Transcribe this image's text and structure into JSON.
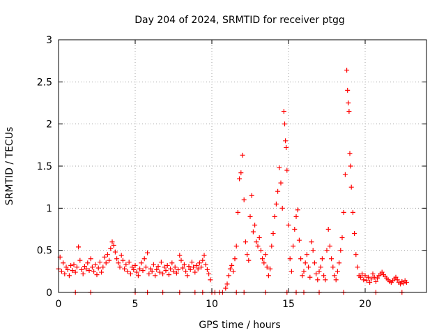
{
  "chart_data": {
    "type": "scatter",
    "title": "Day 204 of 2024, SRMTID for receiver ptgg",
    "xlabel": "GPS time / hours",
    "ylabel": "SRMTID / TECUs",
    "xlim": [
      0,
      24
    ],
    "ylim": [
      0,
      3
    ],
    "xticks": [
      "0",
      "5",
      "10",
      "15",
      "20"
    ],
    "xtick_values": [
      0,
      5,
      10,
      15,
      20
    ],
    "yticks": [
      "0",
      "0.5",
      "1",
      "1.5",
      "2",
      "2.5",
      "3"
    ],
    "ytick_values": [
      0,
      0.5,
      1,
      1.5,
      2,
      2.5,
      3
    ],
    "grid": true,
    "marker": "+",
    "color": "#ff0000",
    "series": [
      {
        "name": "SRMTID",
        "points": [
          [
            0.0,
            0.28
          ],
          [
            0.1,
            0.42
          ],
          [
            0.2,
            0.25
          ],
          [
            0.3,
            0.35
          ],
          [
            0.4,
            0.22
          ],
          [
            0.5,
            0.3
          ],
          [
            0.6,
            0.27
          ],
          [
            0.7,
            0.2
          ],
          [
            0.8,
            0.32
          ],
          [
            0.9,
            0.26
          ],
          [
            1.0,
            0.33
          ],
          [
            1.1,
            0.24
          ],
          [
            1.2,
            0.3
          ],
          [
            1.3,
            0.54
          ],
          [
            1.4,
            0.38
          ],
          [
            1.5,
            0.27
          ],
          [
            1.6,
            0.22
          ],
          [
            1.7,
            0.31
          ],
          [
            1.8,
            0.28
          ],
          [
            1.9,
            0.35
          ],
          [
            2.0,
            0.26
          ],
          [
            2.1,
            0.4
          ],
          [
            2.2,
            0.3
          ],
          [
            2.3,
            0.25
          ],
          [
            2.4,
            0.33
          ],
          [
            2.5,
            0.21
          ],
          [
            2.6,
            0.29
          ],
          [
            2.7,
            0.36
          ],
          [
            2.8,
            0.24
          ],
          [
            2.9,
            0.3
          ],
          [
            3.0,
            0.42
          ],
          [
            3.1,
            0.35
          ],
          [
            3.2,
            0.45
          ],
          [
            3.3,
            0.38
          ],
          [
            3.4,
            0.52
          ],
          [
            3.5,
            0.6
          ],
          [
            3.6,
            0.56
          ],
          [
            3.7,
            0.48
          ],
          [
            3.8,
            0.4
          ],
          [
            3.9,
            0.35
          ],
          [
            4.0,
            0.3
          ],
          [
            4.1,
            0.44
          ],
          [
            4.2,
            0.38
          ],
          [
            4.3,
            0.28
          ],
          [
            4.4,
            0.33
          ],
          [
            4.5,
            0.25
          ],
          [
            4.6,
            0.36
          ],
          [
            4.7,
            0.22
          ],
          [
            4.8,
            0.3
          ],
          [
            4.9,
            0.27
          ],
          [
            5.0,
            0.32
          ],
          [
            5.1,
            0.24
          ],
          [
            5.2,
            0.2
          ],
          [
            5.3,
            0.28
          ],
          [
            5.4,
            0.35
          ],
          [
            5.5,
            0.26
          ],
          [
            5.6,
            0.4
          ],
          [
            5.7,
            0.3
          ],
          [
            5.8,
            0.47
          ],
          [
            5.9,
            0.22
          ],
          [
            6.0,
            0.28
          ],
          [
            6.1,
            0.25
          ],
          [
            6.2,
            0.33
          ],
          [
            6.3,
            0.2
          ],
          [
            6.4,
            0.27
          ],
          [
            6.5,
            0.31
          ],
          [
            6.6,
            0.24
          ],
          [
            6.7,
            0.36
          ],
          [
            6.8,
            0.22
          ],
          [
            6.9,
            0.3
          ],
          [
            7.0,
            0.26
          ],
          [
            7.1,
            0.32
          ],
          [
            7.2,
            0.21
          ],
          [
            7.3,
            0.28
          ],
          [
            7.4,
            0.35
          ],
          [
            7.5,
            0.25
          ],
          [
            7.6,
            0.3
          ],
          [
            7.7,
            0.23
          ],
          [
            7.8,
            0.27
          ],
          [
            7.9,
            0.44
          ],
          [
            8.0,
            0.38
          ],
          [
            8.1,
            0.29
          ],
          [
            8.2,
            0.33
          ],
          [
            8.3,
            0.25
          ],
          [
            8.4,
            0.2
          ],
          [
            8.5,
            0.31
          ],
          [
            8.6,
            0.27
          ],
          [
            8.7,
            0.36
          ],
          [
            8.8,
            0.3
          ],
          [
            8.9,
            0.24
          ],
          [
            9.0,
            0.32
          ],
          [
            9.1,
            0.28
          ],
          [
            9.2,
            0.35
          ],
          [
            9.3,
            0.3
          ],
          [
            9.4,
            0.38
          ],
          [
            9.5,
            0.44
          ],
          [
            9.6,
            0.33
          ],
          [
            9.7,
            0.27
          ],
          [
            9.8,
            0.22
          ],
          [
            9.9,
            0.15
          ],
          [
            10.0,
            0.0
          ],
          [
            10.2,
            0.0
          ],
          [
            10.5,
            0.0
          ],
          [
            10.7,
            0.0
          ],
          [
            10.9,
            0.05
          ],
          [
            11.0,
            0.1
          ],
          [
            11.1,
            0.2
          ],
          [
            11.2,
            0.28
          ],
          [
            11.3,
            0.32
          ],
          [
            11.4,
            0.25
          ],
          [
            11.5,
            0.4
          ],
          [
            11.6,
            0.55
          ],
          [
            11.7,
            0.95
          ],
          [
            11.8,
            1.35
          ],
          [
            11.9,
            1.42
          ],
          [
            12.0,
            1.63
          ],
          [
            12.1,
            1.1
          ],
          [
            12.2,
            0.6
          ],
          [
            12.3,
            0.45
          ],
          [
            12.4,
            0.38
          ],
          [
            12.5,
            0.9
          ],
          [
            12.6,
            1.15
          ],
          [
            12.7,
            0.72
          ],
          [
            12.8,
            0.8
          ],
          [
            12.9,
            0.6
          ],
          [
            13.0,
            0.55
          ],
          [
            13.1,
            0.65
          ],
          [
            13.2,
            0.5
          ],
          [
            13.3,
            0.4
          ],
          [
            13.4,
            0.35
          ],
          [
            13.5,
            0.45
          ],
          [
            13.6,
            0.3
          ],
          [
            13.7,
            0.2
          ],
          [
            13.8,
            0.28
          ],
          [
            13.9,
            0.55
          ],
          [
            14.0,
            0.7
          ],
          [
            14.1,
            0.9
          ],
          [
            14.2,
            1.05
          ],
          [
            14.3,
            1.2
          ],
          [
            14.4,
            1.48
          ],
          [
            14.5,
            1.3
          ],
          [
            14.6,
            1.0
          ],
          [
            14.7,
            2.15
          ],
          [
            14.75,
            2.0
          ],
          [
            14.8,
            1.8
          ],
          [
            14.85,
            1.72
          ],
          [
            14.9,
            1.45
          ],
          [
            15.0,
            0.8
          ],
          [
            15.1,
            0.4
          ],
          [
            15.2,
            0.25
          ],
          [
            15.3,
            0.55
          ],
          [
            15.4,
            0.75
          ],
          [
            15.5,
            0.9
          ],
          [
            15.6,
            0.98
          ],
          [
            15.7,
            0.62
          ],
          [
            15.8,
            0.4
          ],
          [
            15.9,
            0.2
          ],
          [
            16.0,
            0.25
          ],
          [
            16.1,
            0.35
          ],
          [
            16.2,
            0.45
          ],
          [
            16.3,
            0.3
          ],
          [
            16.4,
            0.18
          ],
          [
            16.5,
            0.6
          ],
          [
            16.6,
            0.5
          ],
          [
            16.7,
            0.35
          ],
          [
            16.8,
            0.22
          ],
          [
            16.9,
            0.15
          ],
          [
            17.0,
            0.25
          ],
          [
            17.1,
            0.3
          ],
          [
            17.2,
            0.4
          ],
          [
            17.3,
            0.2
          ],
          [
            17.4,
            0.15
          ],
          [
            17.5,
            0.5
          ],
          [
            17.6,
            0.75
          ],
          [
            17.7,
            0.55
          ],
          [
            17.8,
            0.4
          ],
          [
            17.9,
            0.3
          ],
          [
            18.0,
            0.2
          ],
          [
            18.1,
            0.15
          ],
          [
            18.2,
            0.25
          ],
          [
            18.3,
            0.35
          ],
          [
            18.4,
            0.5
          ],
          [
            18.5,
            0.65
          ],
          [
            18.6,
            0.95
          ],
          [
            18.7,
            1.4
          ],
          [
            18.8,
            2.64
          ],
          [
            18.85,
            2.4
          ],
          [
            18.9,
            2.25
          ],
          [
            18.95,
            2.15
          ],
          [
            19.0,
            1.65
          ],
          [
            19.05,
            1.5
          ],
          [
            19.1,
            1.25
          ],
          [
            19.2,
            0.95
          ],
          [
            19.3,
            0.7
          ],
          [
            19.4,
            0.45
          ],
          [
            19.5,
            0.3
          ],
          [
            19.6,
            0.2
          ],
          [
            19.7,
            0.18
          ],
          [
            19.8,
            0.22
          ],
          [
            19.9,
            0.15
          ],
          [
            20.0,
            0.2
          ],
          [
            20.1,
            0.14
          ],
          [
            20.2,
            0.18
          ],
          [
            20.3,
            0.12
          ],
          [
            20.4,
            0.16
          ],
          [
            20.5,
            0.22
          ],
          [
            20.6,
            0.18
          ],
          [
            20.7,
            0.13
          ],
          [
            20.8,
            0.17
          ],
          [
            20.9,
            0.2
          ],
          [
            21.0,
            0.22
          ],
          [
            21.1,
            0.24
          ],
          [
            21.2,
            0.21
          ],
          [
            21.3,
            0.19
          ],
          [
            21.4,
            0.17
          ],
          [
            21.5,
            0.15
          ],
          [
            21.6,
            0.13
          ],
          [
            21.7,
            0.12
          ],
          [
            21.8,
            0.14
          ],
          [
            21.9,
            0.16
          ],
          [
            22.0,
            0.18
          ],
          [
            22.1,
            0.15
          ],
          [
            22.2,
            0.12
          ],
          [
            22.3,
            0.1
          ],
          [
            22.4,
            0.13
          ],
          [
            22.5,
            0.11
          ],
          [
            22.6,
            0.14
          ],
          [
            22.7,
            0.12
          ],
          [
            1.1,
            0.0
          ],
          [
            2.1,
            0.0
          ],
          [
            5.0,
            0.0
          ],
          [
            5.8,
            0.0
          ],
          [
            6.8,
            0.0
          ],
          [
            7.9,
            0.0
          ],
          [
            8.9,
            0.0
          ],
          [
            9.4,
            0.0
          ],
          [
            11.6,
            0.0
          ],
          [
            12.1,
            0.0
          ],
          [
            13.5,
            0.0
          ],
          [
            14.9,
            0.0
          ],
          [
            15.5,
            0.0
          ],
          [
            16.0,
            0.0
          ],
          [
            17.0,
            0.0
          ],
          [
            18.6,
            0.0
          ],
          [
            20.7,
            0.0
          ],
          [
            22.4,
            0.0
          ]
        ]
      }
    ]
  }
}
